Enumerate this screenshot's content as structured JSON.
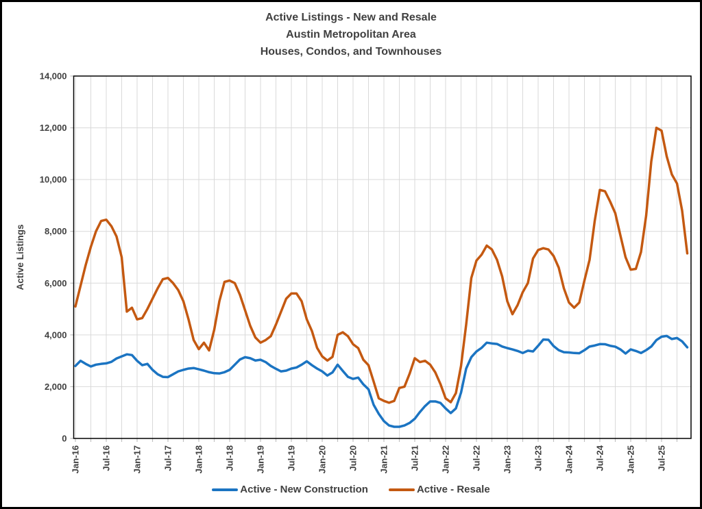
{
  "title_lines": [
    "Active Listings - New and Resale",
    "Austin Metropolitan Area",
    "Houses, Condos, and Townhouses"
  ],
  "chart_data": {
    "type": "line",
    "title": "Active Listings - New and Resale | Austin Metropolitan Area | Houses, Condos, and Townhouses",
    "xlabel": "",
    "ylabel": "Active Listings",
    "ylim": [
      0,
      14000
    ],
    "ytick_step": 2000,
    "y_tick_labels": [
      "0",
      "2,000",
      "4,000",
      "6,000",
      "8,000",
      "10,000",
      "12,000",
      "14,000"
    ],
    "grid": true,
    "x_grid_every_months": 3,
    "x_tick_every_months": 6,
    "legend_position": "bottom",
    "x": [
      "Jan-16",
      "Feb-16",
      "Mar-16",
      "Apr-16",
      "May-16",
      "Jun-16",
      "Jul-16",
      "Aug-16",
      "Sep-16",
      "Oct-16",
      "Nov-16",
      "Dec-16",
      "Jan-17",
      "Feb-17",
      "Mar-17",
      "Apr-17",
      "May-17",
      "Jun-17",
      "Jul-17",
      "Aug-17",
      "Sep-17",
      "Oct-17",
      "Nov-17",
      "Dec-17",
      "Jan-18",
      "Feb-18",
      "Mar-18",
      "Apr-18",
      "May-18",
      "Jun-18",
      "Jul-18",
      "Aug-18",
      "Sep-18",
      "Oct-18",
      "Nov-18",
      "Dec-18",
      "Jan-19",
      "Feb-19",
      "Mar-19",
      "Apr-19",
      "May-19",
      "Jun-19",
      "Jul-19",
      "Aug-19",
      "Sep-19",
      "Oct-19",
      "Nov-19",
      "Dec-19",
      "Jan-20",
      "Feb-20",
      "Mar-20",
      "Apr-20",
      "May-20",
      "Jun-20",
      "Jul-20",
      "Aug-20",
      "Sep-20",
      "Oct-20",
      "Nov-20",
      "Dec-20",
      "Jan-21",
      "Feb-21",
      "Mar-21",
      "Apr-21",
      "May-21",
      "Jun-21",
      "Jul-21",
      "Aug-21",
      "Sep-21",
      "Oct-21",
      "Nov-21",
      "Dec-21",
      "Jan-22",
      "Feb-22",
      "Mar-22",
      "Apr-22",
      "May-22",
      "Jun-22",
      "Jul-22",
      "Aug-22",
      "Sep-22",
      "Oct-22",
      "Nov-22",
      "Dec-22",
      "Jan-23",
      "Feb-23",
      "Mar-23",
      "Apr-23",
      "May-23",
      "Jun-23",
      "Jul-23",
      "Aug-23",
      "Sep-23",
      "Oct-23",
      "Nov-23",
      "Dec-23",
      "Jan-24",
      "Feb-24",
      "Mar-24",
      "Apr-24",
      "May-24",
      "Jun-24",
      "Jul-24",
      "Aug-24",
      "Sep-24",
      "Oct-24",
      "Nov-24",
      "Dec-24",
      "Jan-25",
      "Feb-25",
      "Mar-25",
      "Apr-25",
      "May-25",
      "Jun-25",
      "Jul-25",
      "Aug-25",
      "Sep-25",
      "Oct-25",
      "Nov-25",
      "Dec-25"
    ],
    "series": [
      {
        "name": "Active - New Construction",
        "color": "#1B74C2",
        "values": [
          2800,
          3000,
          2880,
          2780,
          2850,
          2880,
          2900,
          2960,
          3090,
          3170,
          3250,
          3220,
          3000,
          2830,
          2880,
          2650,
          2480,
          2380,
          2370,
          2480,
          2590,
          2650,
          2700,
          2720,
          2670,
          2620,
          2560,
          2520,
          2510,
          2560,
          2650,
          2850,
          3050,
          3140,
          3100,
          3010,
          3040,
          2950,
          2800,
          2690,
          2590,
          2620,
          2700,
          2740,
          2850,
          2980,
          2830,
          2700,
          2590,
          2430,
          2550,
          2850,
          2610,
          2380,
          2300,
          2350,
          2090,
          1900,
          1300,
          950,
          670,
          500,
          450,
          450,
          500,
          600,
          760,
          1020,
          1250,
          1430,
          1430,
          1370,
          1160,
          980,
          1160,
          1770,
          2700,
          3140,
          3360,
          3500,
          3700,
          3670,
          3650,
          3550,
          3490,
          3440,
          3380,
          3300,
          3390,
          3360,
          3580,
          3820,
          3810,
          3570,
          3410,
          3330,
          3320,
          3300,
          3290,
          3410,
          3550,
          3590,
          3645,
          3640,
          3580,
          3545,
          3440,
          3280,
          3440,
          3380,
          3300,
          3410,
          3550,
          3800,
          3930,
          3960,
          3840,
          3880,
          3750,
          3520
        ]
      },
      {
        "name": "Active - Resale",
        "color": "#C45911",
        "values": [
          5100,
          5900,
          6700,
          7400,
          8000,
          8400,
          8450,
          8200,
          7800,
          7000,
          4900,
          5050,
          4600,
          4650,
          5000,
          5400,
          5800,
          6150,
          6200,
          6000,
          5730,
          5300,
          4600,
          3800,
          3450,
          3700,
          3400,
          4200,
          5300,
          6050,
          6100,
          6000,
          5550,
          4950,
          4350,
          3900,
          3700,
          3800,
          3950,
          4400,
          4900,
          5400,
          5600,
          5600,
          5300,
          4600,
          4150,
          3500,
          3170,
          3010,
          3150,
          4000,
          4100,
          3950,
          3640,
          3490,
          3040,
          2830,
          2200,
          1550,
          1450,
          1380,
          1450,
          1950,
          2000,
          2500,
          3100,
          2950,
          3000,
          2850,
          2550,
          2100,
          1550,
          1400,
          1750,
          2800,
          4400,
          6200,
          6870,
          7100,
          7450,
          7300,
          6900,
          6260,
          5300,
          4800,
          5150,
          5650,
          6000,
          6950,
          7280,
          7350,
          7300,
          7050,
          6600,
          5800,
          5250,
          5050,
          5250,
          6100,
          6900,
          8400,
          9600,
          9550,
          9150,
          8700,
          7840,
          7000,
          6520,
          6550,
          7200,
          8600,
          10700,
          12000,
          11890,
          10900,
          10200,
          9850,
          8800,
          7150
        ]
      }
    ]
  },
  "colors": {
    "text": "#404040",
    "gridline": "#D9D9D9",
    "tick": "#BFBFBF",
    "plot_border": "#000000",
    "frame_border": "#000000"
  }
}
